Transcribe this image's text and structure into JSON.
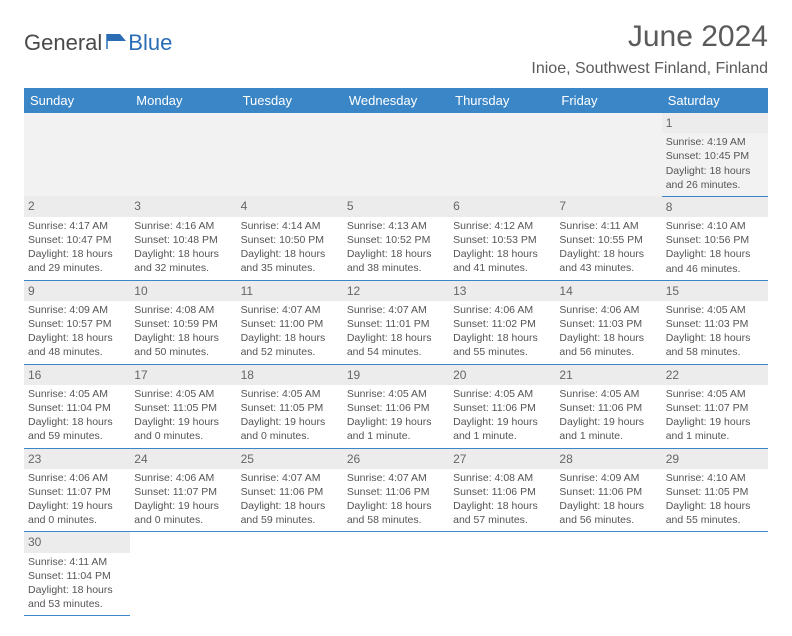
{
  "logo": {
    "text1": "General",
    "text2": "Blue"
  },
  "title": "June 2024",
  "location": "Inioe, Southwest Finland, Finland",
  "colors": {
    "header_bg": "#3b86c7",
    "header_text": "#ffffff",
    "daynum_bg": "#ececec",
    "border": "#3b86c7",
    "text": "#555555",
    "logo_gray": "#4a4a4a",
    "logo_blue": "#2a6db5"
  },
  "weekdays": [
    "Sunday",
    "Monday",
    "Tuesday",
    "Wednesday",
    "Thursday",
    "Friday",
    "Saturday"
  ],
  "weeks": [
    [
      null,
      null,
      null,
      null,
      null,
      null,
      {
        "n": "1",
        "sr": "Sunrise: 4:19 AM",
        "ss": "Sunset: 10:45 PM",
        "dl1": "Daylight: 18 hours",
        "dl2": "and 26 minutes."
      }
    ],
    [
      {
        "n": "2",
        "sr": "Sunrise: 4:17 AM",
        "ss": "Sunset: 10:47 PM",
        "dl1": "Daylight: 18 hours",
        "dl2": "and 29 minutes."
      },
      {
        "n": "3",
        "sr": "Sunrise: 4:16 AM",
        "ss": "Sunset: 10:48 PM",
        "dl1": "Daylight: 18 hours",
        "dl2": "and 32 minutes."
      },
      {
        "n": "4",
        "sr": "Sunrise: 4:14 AM",
        "ss": "Sunset: 10:50 PM",
        "dl1": "Daylight: 18 hours",
        "dl2": "and 35 minutes."
      },
      {
        "n": "5",
        "sr": "Sunrise: 4:13 AM",
        "ss": "Sunset: 10:52 PM",
        "dl1": "Daylight: 18 hours",
        "dl2": "and 38 minutes."
      },
      {
        "n": "6",
        "sr": "Sunrise: 4:12 AM",
        "ss": "Sunset: 10:53 PM",
        "dl1": "Daylight: 18 hours",
        "dl2": "and 41 minutes."
      },
      {
        "n": "7",
        "sr": "Sunrise: 4:11 AM",
        "ss": "Sunset: 10:55 PM",
        "dl1": "Daylight: 18 hours",
        "dl2": "and 43 minutes."
      },
      {
        "n": "8",
        "sr": "Sunrise: 4:10 AM",
        "ss": "Sunset: 10:56 PM",
        "dl1": "Daylight: 18 hours",
        "dl2": "and 46 minutes."
      }
    ],
    [
      {
        "n": "9",
        "sr": "Sunrise: 4:09 AM",
        "ss": "Sunset: 10:57 PM",
        "dl1": "Daylight: 18 hours",
        "dl2": "and 48 minutes."
      },
      {
        "n": "10",
        "sr": "Sunrise: 4:08 AM",
        "ss": "Sunset: 10:59 PM",
        "dl1": "Daylight: 18 hours",
        "dl2": "and 50 minutes."
      },
      {
        "n": "11",
        "sr": "Sunrise: 4:07 AM",
        "ss": "Sunset: 11:00 PM",
        "dl1": "Daylight: 18 hours",
        "dl2": "and 52 minutes."
      },
      {
        "n": "12",
        "sr": "Sunrise: 4:07 AM",
        "ss": "Sunset: 11:01 PM",
        "dl1": "Daylight: 18 hours",
        "dl2": "and 54 minutes."
      },
      {
        "n": "13",
        "sr": "Sunrise: 4:06 AM",
        "ss": "Sunset: 11:02 PM",
        "dl1": "Daylight: 18 hours",
        "dl2": "and 55 minutes."
      },
      {
        "n": "14",
        "sr": "Sunrise: 4:06 AM",
        "ss": "Sunset: 11:03 PM",
        "dl1": "Daylight: 18 hours",
        "dl2": "and 56 minutes."
      },
      {
        "n": "15",
        "sr": "Sunrise: 4:05 AM",
        "ss": "Sunset: 11:03 PM",
        "dl1": "Daylight: 18 hours",
        "dl2": "and 58 minutes."
      }
    ],
    [
      {
        "n": "16",
        "sr": "Sunrise: 4:05 AM",
        "ss": "Sunset: 11:04 PM",
        "dl1": "Daylight: 18 hours",
        "dl2": "and 59 minutes."
      },
      {
        "n": "17",
        "sr": "Sunrise: 4:05 AM",
        "ss": "Sunset: 11:05 PM",
        "dl1": "Daylight: 19 hours",
        "dl2": "and 0 minutes."
      },
      {
        "n": "18",
        "sr": "Sunrise: 4:05 AM",
        "ss": "Sunset: 11:05 PM",
        "dl1": "Daylight: 19 hours",
        "dl2": "and 0 minutes."
      },
      {
        "n": "19",
        "sr": "Sunrise: 4:05 AM",
        "ss": "Sunset: 11:06 PM",
        "dl1": "Daylight: 19 hours",
        "dl2": "and 1 minute."
      },
      {
        "n": "20",
        "sr": "Sunrise: 4:05 AM",
        "ss": "Sunset: 11:06 PM",
        "dl1": "Daylight: 19 hours",
        "dl2": "and 1 minute."
      },
      {
        "n": "21",
        "sr": "Sunrise: 4:05 AM",
        "ss": "Sunset: 11:06 PM",
        "dl1": "Daylight: 19 hours",
        "dl2": "and 1 minute."
      },
      {
        "n": "22",
        "sr": "Sunrise: 4:05 AM",
        "ss": "Sunset: 11:07 PM",
        "dl1": "Daylight: 19 hours",
        "dl2": "and 1 minute."
      }
    ],
    [
      {
        "n": "23",
        "sr": "Sunrise: 4:06 AM",
        "ss": "Sunset: 11:07 PM",
        "dl1": "Daylight: 19 hours",
        "dl2": "and 0 minutes."
      },
      {
        "n": "24",
        "sr": "Sunrise: 4:06 AM",
        "ss": "Sunset: 11:07 PM",
        "dl1": "Daylight: 19 hours",
        "dl2": "and 0 minutes."
      },
      {
        "n": "25",
        "sr": "Sunrise: 4:07 AM",
        "ss": "Sunset: 11:06 PM",
        "dl1": "Daylight: 18 hours",
        "dl2": "and 59 minutes."
      },
      {
        "n": "26",
        "sr": "Sunrise: 4:07 AM",
        "ss": "Sunset: 11:06 PM",
        "dl1": "Daylight: 18 hours",
        "dl2": "and 58 minutes."
      },
      {
        "n": "27",
        "sr": "Sunrise: 4:08 AM",
        "ss": "Sunset: 11:06 PM",
        "dl1": "Daylight: 18 hours",
        "dl2": "and 57 minutes."
      },
      {
        "n": "28",
        "sr": "Sunrise: 4:09 AM",
        "ss": "Sunset: 11:06 PM",
        "dl1": "Daylight: 18 hours",
        "dl2": "and 56 minutes."
      },
      {
        "n": "29",
        "sr": "Sunrise: 4:10 AM",
        "ss": "Sunset: 11:05 PM",
        "dl1": "Daylight: 18 hours",
        "dl2": "and 55 minutes."
      }
    ],
    [
      {
        "n": "30",
        "sr": "Sunrise: 4:11 AM",
        "ss": "Sunset: 11:04 PM",
        "dl1": "Daylight: 18 hours",
        "dl2": "and 53 minutes."
      },
      null,
      null,
      null,
      null,
      null,
      null
    ]
  ]
}
